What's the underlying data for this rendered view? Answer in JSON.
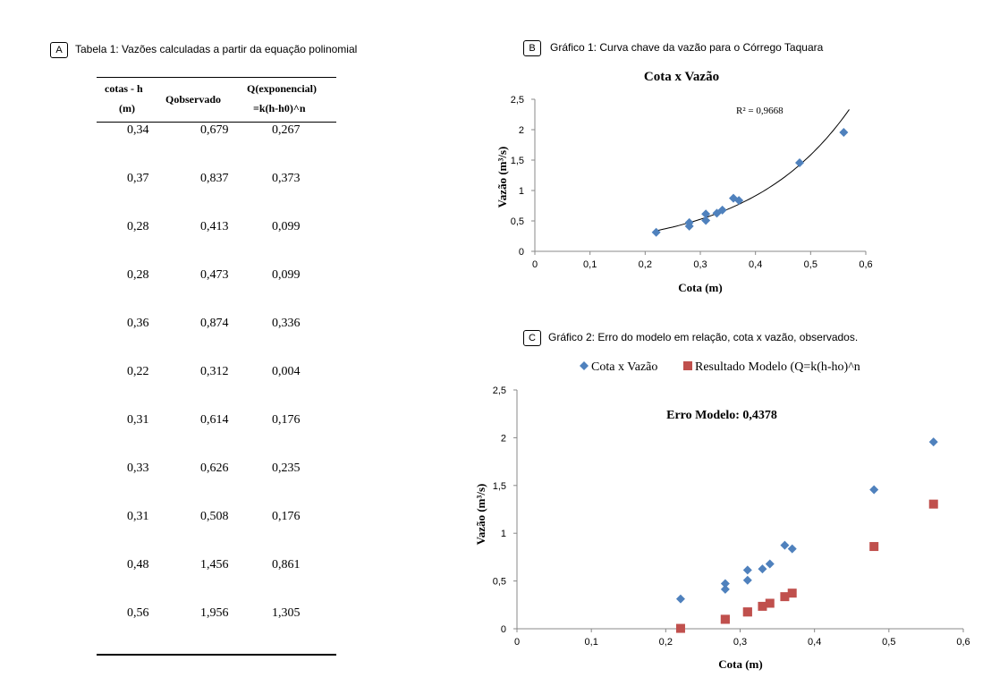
{
  "panel_a": {
    "tag": "A",
    "caption": "Tabela 1: Vazões calculadas a partir da equação polinomial",
    "headers": {
      "col1_line1": "cotas - h",
      "col1_line2": "(m)",
      "col2": "Qobservado",
      "col3_line1": "Q(exponencial)",
      "col3_line2": "=k(h-h0)^n"
    },
    "rows": [
      [
        "0,34",
        "0,679",
        "0,267"
      ],
      [
        "0,37",
        "0,837",
        "0,373"
      ],
      [
        "0,28",
        "0,413",
        "0,099"
      ],
      [
        "0,28",
        "0,473",
        "0,099"
      ],
      [
        "0,36",
        "0,874",
        "0,336"
      ],
      [
        "0,22",
        "0,312",
        "0,004"
      ],
      [
        "0,31",
        "0,614",
        "0,176"
      ],
      [
        "0,33",
        "0,626",
        "0,235"
      ],
      [
        "0,31",
        "0,508",
        "0,176"
      ],
      [
        "0,48",
        "1,456",
        "0,861"
      ],
      [
        "0,56",
        "1,956",
        "1,305"
      ]
    ]
  },
  "panel_b": {
    "tag": "B",
    "caption": "Gráfico 1: Curva chave da vazão para o Córrego Taquara"
  },
  "panel_c": {
    "tag": "C",
    "caption": "Gráfico 2: Erro do modelo em relação, cota x vazão, observados."
  },
  "chart_data": [
    {
      "type": "scatter",
      "title": "Cota x Vazão",
      "xlabel": "Cota (m)",
      "ylabel": "Vazão (m³/s)",
      "xlim": [
        0,
        0.6
      ],
      "ylim": [
        0,
        2.5
      ],
      "xticks": [
        "0",
        "0,1",
        "0,2",
        "0,3",
        "0,4",
        "0,5",
        "0,6"
      ],
      "yticks": [
        "0",
        "0,5",
        "1",
        "1,5",
        "2",
        "2,5"
      ],
      "annotation": "R² = 0,9668",
      "trendline": "exponential",
      "marker_color": "#4f81bd",
      "series": [
        {
          "x": [
            0.34,
            0.37,
            0.28,
            0.28,
            0.36,
            0.22,
            0.31,
            0.33,
            0.31,
            0.48,
            0.56
          ],
          "y": [
            0.679,
            0.837,
            0.413,
            0.473,
            0.874,
            0.312,
            0.614,
            0.626,
            0.508,
            1.456,
            1.956
          ]
        }
      ]
    },
    {
      "type": "scatter",
      "title": "Erro Modelo: 0,4378",
      "xlabel": "Cota (m)",
      "ylabel": "Vazão (m³/s)",
      "xlim": [
        0,
        0.6
      ],
      "ylim": [
        0,
        2.5
      ],
      "xticks": [
        "0",
        "0,1",
        "0,2",
        "0,3",
        "0,4",
        "0,5",
        "0,6"
      ],
      "yticks": [
        "0",
        "0,5",
        "1",
        "1,5",
        "2",
        "2,5"
      ],
      "legend": "top",
      "series": [
        {
          "name": "Cota x Vazão",
          "marker": "diamond",
          "color": "#4f81bd",
          "x": [
            0.34,
            0.37,
            0.28,
            0.28,
            0.36,
            0.22,
            0.31,
            0.33,
            0.31,
            0.48,
            0.56
          ],
          "y": [
            0.679,
            0.837,
            0.413,
            0.473,
            0.874,
            0.312,
            0.614,
            0.626,
            0.508,
            1.456,
            1.956
          ]
        },
        {
          "name": "Resultado Modelo (Q=k(h-ho)^n",
          "marker": "square",
          "color": "#c0504d",
          "x": [
            0.34,
            0.37,
            0.28,
            0.28,
            0.36,
            0.22,
            0.31,
            0.33,
            0.31,
            0.48,
            0.56
          ],
          "y": [
            0.267,
            0.373,
            0.099,
            0.099,
            0.336,
            0.004,
            0.176,
            0.235,
            0.176,
            0.861,
            1.305
          ]
        }
      ]
    }
  ]
}
